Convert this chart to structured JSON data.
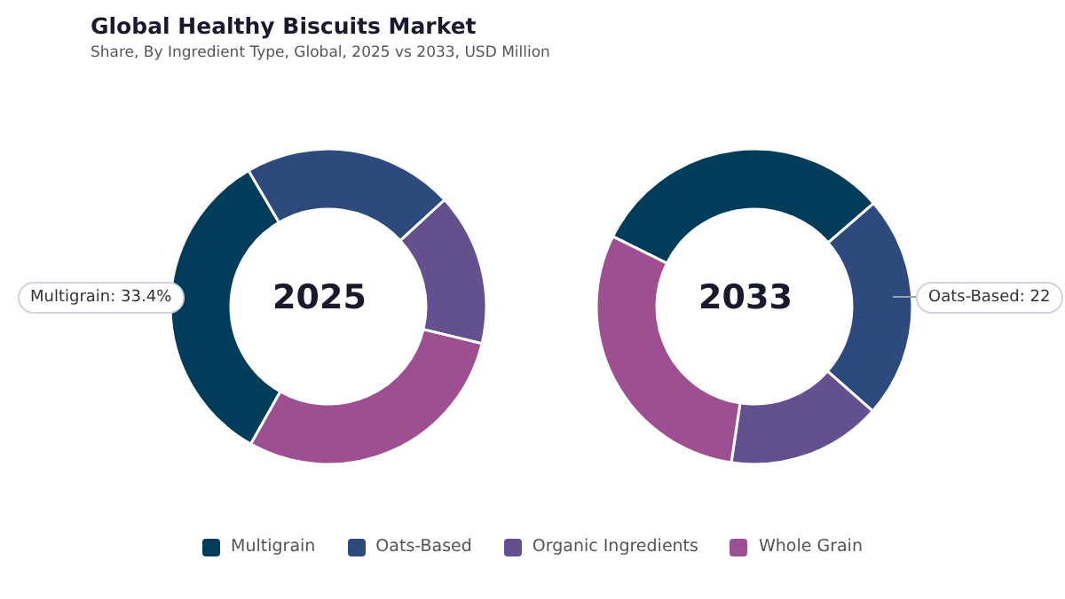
{
  "chart_data": {
    "type": "donut",
    "title": "Global Healthy Biscuits Market",
    "subtitle": "Share, By Ingredient Type, Global, 2025 vs 2033, USD Million",
    "categories": [
      "Multigrain",
      "Oats-Based",
      "Organic Ingredients",
      "Whole Grain"
    ],
    "colors": [
      "#013d5a",
      "#2d4a7c",
      "#64508f",
      "#9d4f92"
    ],
    "series": [
      {
        "name": "2025",
        "values": [
          33.4,
          21.6,
          15.6,
          29.4
        ]
      },
      {
        "name": "2033",
        "values": [
          31.3,
          22.9,
          15.8,
          30.0
        ]
      }
    ],
    "annotations": [
      "Multigrain: 33.4%",
      "Oats-Based: 22"
    ],
    "legend": "bottom"
  }
}
